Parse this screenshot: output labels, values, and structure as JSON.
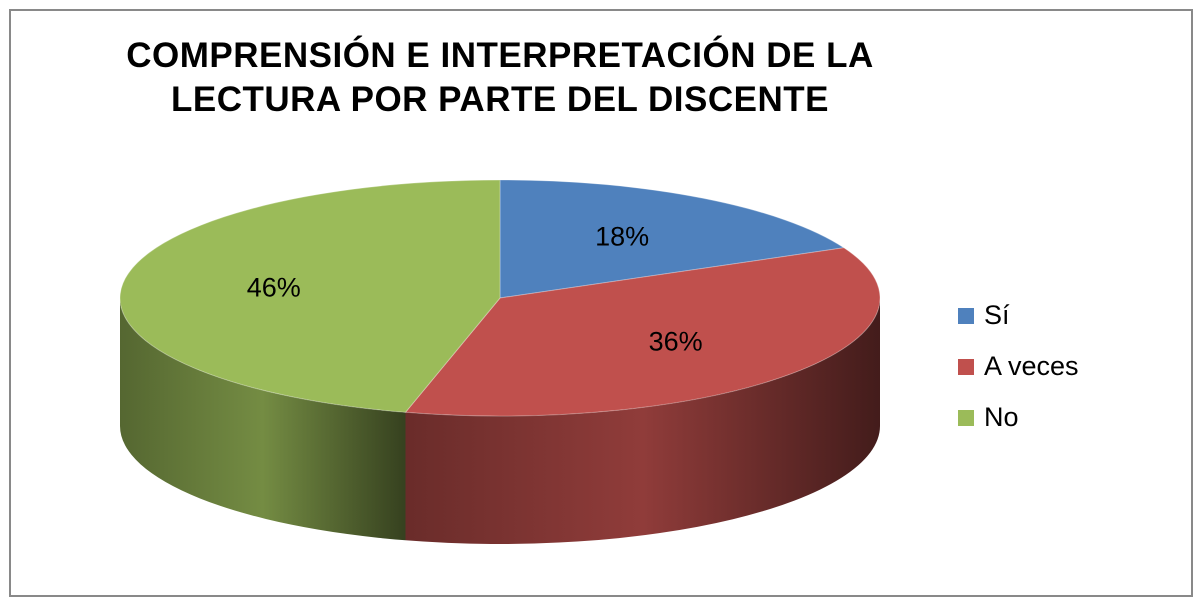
{
  "chart_data": {
    "type": "pie3d",
    "title": "COMPRENSIÓN E INTERPRETACIÓN DE LA LECTURA POR PARTE DEL DISCENTE",
    "categories": [
      "Sí",
      "A veces",
      "No"
    ],
    "values": [
      18,
      36,
      46
    ],
    "value_labels": [
      "18%",
      "36%",
      "46%"
    ],
    "colors": [
      "#4f81bd",
      "#c0504d",
      "#9bbb59"
    ],
    "legend": "right"
  }
}
